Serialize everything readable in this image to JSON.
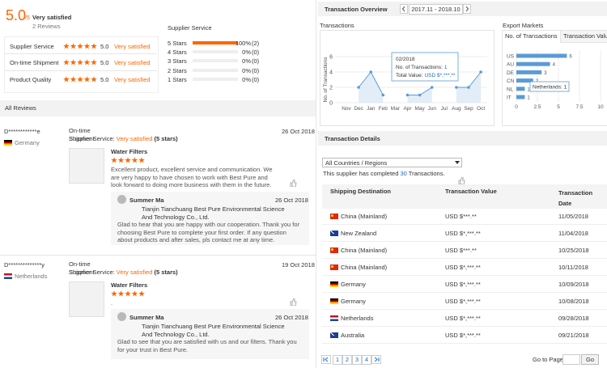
{
  "left": {
    "score": "5.0",
    "score_max": "/5",
    "score_text": "Very satisfied",
    "review_count": "2 Reviews",
    "criteria": [
      {
        "label": "Supplier Service",
        "score": "5.0",
        "text": "Very satisfied"
      },
      {
        "label": "On-time Shipment",
        "score": "5.0",
        "text": "Very satisfied"
      },
      {
        "label": "Product Quality",
        "score": "5.0",
        "text": "Very satisfied"
      }
    ],
    "distribution": {
      "title": "Supplier Service",
      "rows": [
        {
          "label": "5 Stars",
          "percent": 100,
          "percent_label": "100%",
          "count": "(2)"
        },
        {
          "label": "4 Stars",
          "percent": 0,
          "percent_label": "0%",
          "count": "(0)"
        },
        {
          "label": "3 Stars",
          "percent": 0,
          "percent_label": "0%",
          "count": "(0)"
        },
        {
          "label": "2 Stars",
          "percent": 0,
          "percent_label": "0%",
          "count": "(0)"
        },
        {
          "label": "1 Stars",
          "percent": 0,
          "percent_label": "0%",
          "count": "(0)"
        }
      ]
    },
    "all_reviews": "All Reviews",
    "reviews": [
      {
        "buyer": "D************e",
        "country": "Germany",
        "shipment_label": "On-time Shipment",
        "service_label": "Supplier Service:",
        "service_text": "Very satisfied",
        "service_stars": "(5 stars)",
        "date": "26 Oct 2018",
        "product": "Water Filters",
        "comment": "Excellent product, excellent service and communication. We are very happy to have chosen to work with Best Pure and look forward to doing more business with them in the future.",
        "reply": {
          "name": "Summer Ma",
          "company": "Tianjin Tianchuang Best Pure Environmental Science And Technology Co., Ltd.",
          "date": "26 Oct 2018",
          "text": "Glad to hear that you are happy with our cooperation. Thank you for choosing Best Pure to complete your first order. If any question about products and after sales, pls contact me at any time."
        }
      },
      {
        "buyer": "D**************y",
        "country": "Netherlands",
        "shipment_label": "On-time Shipment",
        "service_label": "Supplier Service:",
        "service_text": "Very satisfied",
        "service_stars": "(5 stars)",
        "date": "19 Oct 2018",
        "product": "Water Filters",
        "comment": ".",
        "reply": {
          "name": "Summer Ma",
          "company": "Tianjin Tianchuang Best Pure Environmental Science And Technology Co., Ltd.",
          "date": "26 Oct 2018",
          "text": "Glad to see that you are satisfied with us and our filters. Thank you for your trust in Best Pure."
        }
      }
    ]
  },
  "right": {
    "overview_title": "Transaction Overview",
    "date_range": "2017.11 - 2018.10",
    "transactions_chart": {
      "type": "line",
      "title": "Transactions",
      "y_label": "No. of Transactions",
      "categories": [
        "Nov",
        "Dec",
        "Jan",
        "Feb",
        "Mar",
        "Apr",
        "May",
        "Jun",
        "Jul",
        "Aug",
        "Sep",
        "Oct"
      ],
      "values": [
        null,
        2,
        4,
        1,
        null,
        1,
        1,
        2,
        null,
        2,
        2,
        4
      ],
      "ylim": [
        0,
        6
      ],
      "yticks": [
        0,
        2,
        4,
        6
      ],
      "grid": true,
      "color": "#5b9bd5",
      "tooltip": {
        "period": "02/2018",
        "count_label": "No. of Transactions:",
        "count": 1,
        "total_label": "Total Value:",
        "total_value": "USD $*,***.**"
      }
    },
    "export_chart": {
      "type": "bar",
      "orientation": "horizontal",
      "title": "Export Markets",
      "tabs": [
        "No. of Transactions",
        "Transaction Value"
      ],
      "categories": [
        "US",
        "AU",
        "DE",
        "CN",
        "NL",
        "IT"
      ],
      "values": [
        6,
        4,
        3,
        2,
        1,
        1
      ],
      "xlim": [
        0,
        10
      ],
      "xticks": [
        0,
        2.5,
        5,
        7.5,
        10
      ],
      "grid": true,
      "color": "#5b9bd5",
      "tooltip": "Netherlands: 1"
    },
    "details_title": "Transaction Details",
    "filter": "All Countries / Regions",
    "completed_prefix": "This supplier has completed",
    "completed_count": 30,
    "completed_suffix": "Transactions.",
    "table": {
      "headers": [
        "Shipping Destination",
        "Transaction Value",
        "Transaction Date"
      ],
      "rows": [
        [
          "China (Mainland)",
          "USD $***.**",
          "11/05/2018"
        ],
        [
          "New Zealand",
          "USD $*,***.**",
          "11/04/2018"
        ],
        [
          "China (Mainland)",
          "USD $***.**",
          "10/25/2018"
        ],
        [
          "China (Mainland)",
          "USD $*,***.**",
          "10/11/2018"
        ],
        [
          "Germany",
          "USD $*,***.**",
          "10/09/2018"
        ],
        [
          "Germany",
          "USD $*,***.**",
          "10/08/2018"
        ],
        [
          "Netherlands",
          "USD $*,***.**",
          "09/28/2018"
        ],
        [
          "Australia",
          "USD $*,***.**",
          "09/21/2018"
        ]
      ]
    },
    "pagination": {
      "pages": [
        1,
        2,
        3,
        4
      ],
      "goto_label": "Go to Page",
      "go": "Go"
    }
  }
}
